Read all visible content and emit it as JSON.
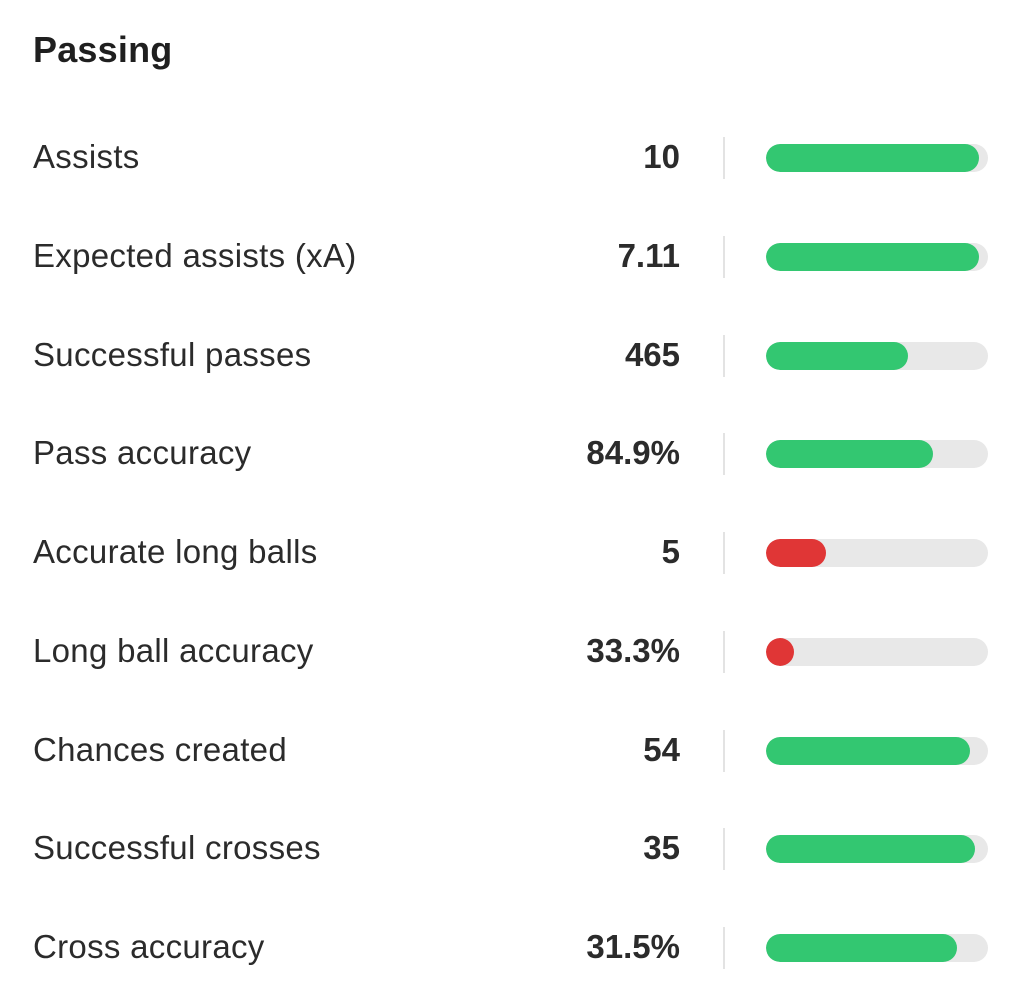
{
  "section": {
    "title": "Passing"
  },
  "colors": {
    "good": "#33c771",
    "bad": "#e03636",
    "track": "#e8e8e8"
  },
  "stats": [
    {
      "label": "Assists",
      "value": "10",
      "fill_fraction": 0.96,
      "status": "good"
    },
    {
      "label": "Expected assists (xA)",
      "value": "7.11",
      "fill_fraction": 0.96,
      "status": "good"
    },
    {
      "label": "Successful passes",
      "value": "465",
      "fill_fraction": 0.64,
      "status": "good"
    },
    {
      "label": "Pass accuracy",
      "value": "84.9%",
      "fill_fraction": 0.75,
      "status": "good"
    },
    {
      "label": "Accurate long balls",
      "value": "5",
      "fill_fraction": 0.27,
      "status": "bad"
    },
    {
      "label": "Long ball accuracy",
      "value": "33.3%",
      "fill_fraction": 0.06,
      "status": "bad"
    },
    {
      "label": "Chances created",
      "value": "54",
      "fill_fraction": 0.92,
      "status": "good"
    },
    {
      "label": "Successful crosses",
      "value": "35",
      "fill_fraction": 0.94,
      "status": "good"
    },
    {
      "label": "Cross accuracy",
      "value": "31.5%",
      "fill_fraction": 0.86,
      "status": "good"
    }
  ]
}
